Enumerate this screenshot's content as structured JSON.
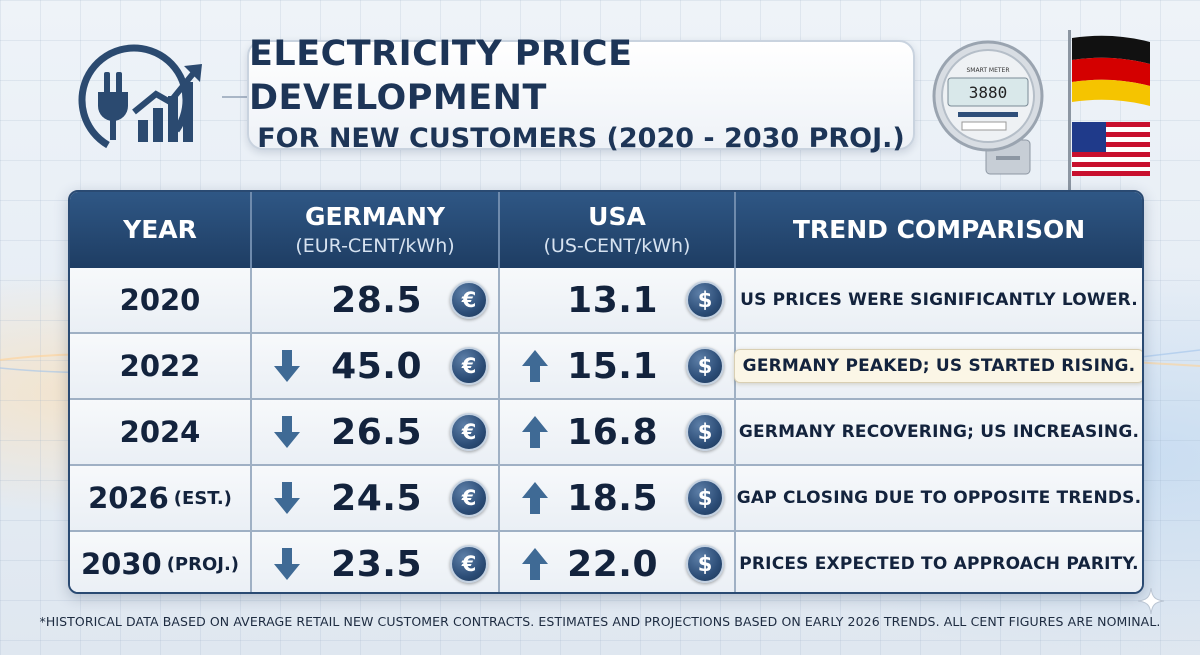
{
  "header": {
    "title_line1": "ELECTRICITY PRICE DEVELOPMENT",
    "title_line2": "FOR NEW CUSTOMERS (2020 - 2030 PROJ.)",
    "logo_icon": "plug-growth-chart-icon",
    "meter_icon": "smart-meter-icon",
    "meter_label": "SMART METER",
    "meter_reading": "3880",
    "flags": [
      "germany-flag",
      "usa-flag"
    ]
  },
  "table": {
    "columns": [
      {
        "label": "YEAR",
        "sub": ""
      },
      {
        "label": "GERMANY",
        "sub": "(EUR-CENT/kWh)"
      },
      {
        "label": "USA",
        "sub": "(US-CENT/kWh)"
      },
      {
        "label": "TREND COMPARISON",
        "sub": ""
      }
    ],
    "rows": [
      {
        "year": "2020",
        "note": "",
        "de": "28.5",
        "de_arrow": "",
        "de_symbol": "€",
        "us": "13.1",
        "us_arrow": "",
        "us_symbol": "$",
        "trend": "US PRICES WERE SIGNIFICANTLY LOWER.",
        "highlight": false
      },
      {
        "year": "2022",
        "note": "",
        "de": "45.0",
        "de_arrow": "down",
        "de_symbol": "€",
        "us": "15.1",
        "us_arrow": "up",
        "us_symbol": "$",
        "trend": "GERMANY PEAKED; US STARTED RISING.",
        "highlight": true
      },
      {
        "year": "2024",
        "note": "",
        "de": "26.5",
        "de_arrow": "down",
        "de_symbol": "€",
        "us": "16.8",
        "us_arrow": "up",
        "us_symbol": "$",
        "trend": "GERMANY RECOVERING; US INCREASING.",
        "highlight": false
      },
      {
        "year": "2026",
        "note": "(EST.)",
        "de": "24.5",
        "de_arrow": "down",
        "de_symbol": "€",
        "us": "18.5",
        "us_arrow": "up",
        "us_symbol": "$",
        "trend": "GAP CLOSING DUE TO OPPOSITE TRENDS.",
        "highlight": false
      },
      {
        "year": "2030",
        "note": "(PROJ.)",
        "de": "23.5",
        "de_arrow": "down",
        "de_symbol": "€",
        "us": "22.0",
        "us_arrow": "up",
        "us_symbol": "$",
        "trend": "PRICES EXPECTED TO APPROACH PARITY.",
        "highlight": false
      }
    ]
  },
  "footnote": "*HISTORICAL DATA BASED ON AVERAGE RETAIL NEW CUSTOMER CONTRACTS. ESTIMATES AND PROJECTIONS BASED ON EARLY 2026 TRENDS. ALL CENT FIGURES ARE NOMINAL.",
  "colors": {
    "header_bg": "#1e3d63",
    "text_dark": "#13233d",
    "coin": "#2c4d77",
    "arrow": "#3f6a95",
    "highlight_bg": "#fbf6e6"
  }
}
